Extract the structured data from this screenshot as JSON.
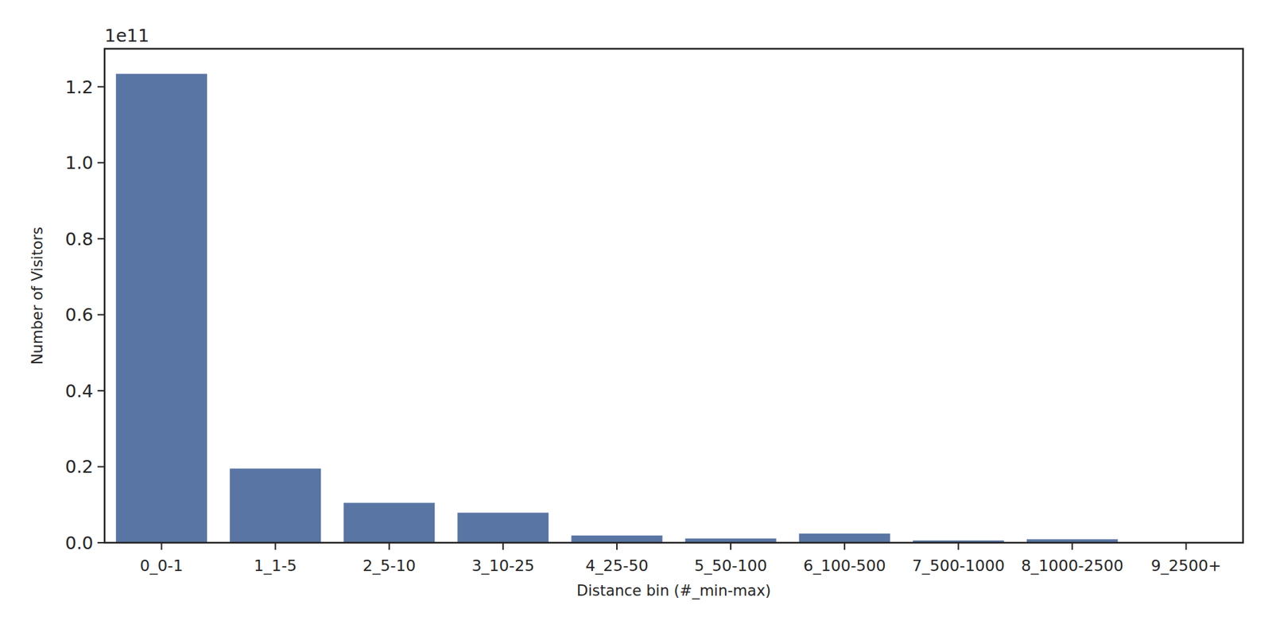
{
  "chart_data": {
    "type": "bar",
    "categories": [
      "0_0-1",
      "1_1-5",
      "2_5-10",
      "3_10-25",
      "4_25-50",
      "5_50-100",
      "6_100-500",
      "7_500-1000",
      "8_1000-2500",
      "9_2500+"
    ],
    "values": [
      1.234,
      0.195,
      0.105,
      0.079,
      0.019,
      0.011,
      0.024,
      0.006,
      0.009,
      0.0005
    ],
    "color": "#5975a4",
    "ylim": [
      0,
      1.3
    ],
    "yticks": [
      {
        "value": 0,
        "label": "0.0"
      },
      {
        "value": 0.2,
        "label": "0.2"
      },
      {
        "value": 0.4,
        "label": "0.4"
      },
      {
        "value": 0.6,
        "label": "0.6"
      },
      {
        "value": 0.8,
        "label": "0.8"
      },
      {
        "value": 1.0,
        "label": "1.0"
      },
      {
        "value": 1.2,
        "label": "1.2"
      }
    ],
    "x_label": "Distance bin (#_min-max)",
    "y_label": "Number of Visitors",
    "annotations": [
      "1e11"
    ],
    "grid": false
  }
}
